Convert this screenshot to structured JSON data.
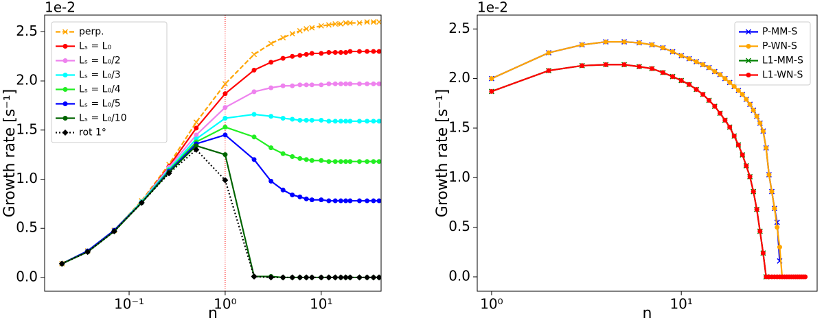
{
  "chart_data": [
    {
      "type": "line",
      "xscale": "log",
      "xlabel": "n",
      "ylabel": "Growth rate [s⁻¹]",
      "offset_label": "1e-2",
      "xlim": [
        0.0132,
        42
      ],
      "ylim": [
        -0.14,
        2.67
      ],
      "xticks": [
        {
          "value": 0.1,
          "label": "10⁻¹"
        },
        {
          "value": 1,
          "label": "10⁰"
        },
        {
          "value": 10,
          "label": "10¹"
        }
      ],
      "yticks": [
        {
          "value": 0,
          "label": "0.0"
        },
        0.5,
        {
          "value": 1,
          "label": "1.0"
        },
        1.5,
        {
          "value": 2,
          "label": "2.0"
        },
        2.5
      ],
      "legend": "upper left",
      "vline": {
        "x": 1,
        "color": "#ff0000"
      },
      "x": [
        0.02,
        0.037,
        0.07,
        0.135,
        0.26,
        0.5,
        1,
        2,
        3,
        4,
        5,
        6,
        7,
        8,
        10,
        12,
        14,
        16,
        18,
        20,
        25,
        30,
        35,
        40
      ],
      "series": [
        {
          "name": "perp.",
          "color": "#ffa500",
          "marker": "x",
          "linestyle": "dashed",
          "values": [
            0.14,
            0.27,
            0.48,
            0.78,
            1.15,
            1.58,
            1.97,
            2.27,
            2.38,
            2.44,
            2.48,
            2.51,
            2.53,
            2.54,
            2.56,
            2.57,
            2.58,
            2.58,
            2.59,
            2.59,
            2.59,
            2.6,
            2.6,
            2.6
          ]
        },
        {
          "name": "Lₛ = L₀",
          "color": "#ff0000",
          "marker": "o",
          "linestyle": "solid",
          "values": [
            0.14,
            0.27,
            0.48,
            0.77,
            1.13,
            1.52,
            1.87,
            2.11,
            2.19,
            2.23,
            2.25,
            2.26,
            2.27,
            2.28,
            2.28,
            2.29,
            2.29,
            2.29,
            2.29,
            2.3,
            2.3,
            2.3,
            2.3,
            2.3
          ]
        },
        {
          "name": "Lₛ = L₀/2",
          "color": "#ee82ee",
          "marker": "o",
          "linestyle": "solid",
          "values": [
            0.14,
            0.27,
            0.48,
            0.77,
            1.12,
            1.45,
            1.73,
            1.89,
            1.93,
            1.95,
            1.95,
            1.96,
            1.96,
            1.96,
            1.96,
            1.97,
            1.97,
            1.97,
            1.97,
            1.97,
            1.97,
            1.97,
            1.97,
            1.97
          ]
        },
        {
          "name": "Lₛ = L₀/3",
          "color": "#00ffff",
          "marker": "o",
          "linestyle": "solid",
          "values": [
            0.14,
            0.27,
            0.48,
            0.77,
            1.1,
            1.41,
            1.62,
            1.66,
            1.64,
            1.62,
            1.61,
            1.6,
            1.6,
            1.6,
            1.6,
            1.59,
            1.59,
            1.59,
            1.59,
            1.59,
            1.59,
            1.59,
            1.59,
            1.59
          ]
        },
        {
          "name": "Lₛ = L₀/4",
          "color": "#22ee22",
          "marker": "o",
          "linestyle": "solid",
          "values": [
            0.14,
            0.27,
            0.48,
            0.76,
            1.09,
            1.38,
            1.53,
            1.43,
            1.32,
            1.26,
            1.23,
            1.21,
            1.2,
            1.19,
            1.19,
            1.18,
            1.18,
            1.18,
            1.18,
            1.18,
            1.18,
            1.18,
            1.18,
            1.18
          ]
        },
        {
          "name": "Lₛ = L₀/5",
          "color": "#0000ff",
          "marker": "o",
          "linestyle": "solid",
          "values": [
            0.14,
            0.27,
            0.48,
            0.76,
            1.08,
            1.36,
            1.45,
            1.2,
            0.98,
            0.89,
            0.84,
            0.82,
            0.8,
            0.79,
            0.79,
            0.78,
            0.78,
            0.78,
            0.78,
            0.78,
            0.78,
            0.78,
            0.78,
            0.78
          ]
        },
        {
          "name": "Lₛ = L₀/10",
          "color": "#006400",
          "marker": "o",
          "linestyle": "solid",
          "values": [
            0.14,
            0.26,
            0.47,
            0.76,
            1.07,
            1.34,
            1.25,
            0.01,
            0.01,
            0,
            0,
            0,
            0,
            0,
            0,
            0,
            0,
            0,
            0,
            0,
            0,
            0,
            0,
            0
          ]
        },
        {
          "name": "rot 1°",
          "color": "#000000",
          "marker": "D",
          "linestyle": "dotted",
          "values": [
            0.14,
            0.26,
            0.47,
            0.76,
            1.06,
            1.3,
            0.99,
            0.01,
            0,
            0,
            0,
            0,
            0,
            0,
            0,
            0,
            0,
            0,
            0,
            0,
            0,
            0,
            0,
            0
          ]
        }
      ]
    },
    {
      "type": "line",
      "xscale": "log",
      "xlabel": "n",
      "ylabel": "Growth rate [s⁻¹]",
      "offset_label": "1e-2",
      "xlim": [
        0.84,
        52
      ],
      "ylim": [
        -0.145,
        2.64
      ],
      "xticks": [
        {
          "value": 1,
          "label": "10⁰"
        },
        {
          "value": 10,
          "label": "10¹"
        }
      ],
      "yticks": [
        {
          "value": 0,
          "label": "0.0"
        },
        0.5,
        {
          "value": 1,
          "label": "1.0"
        },
        1.5,
        {
          "value": 2,
          "label": "2.0"
        },
        2.5
      ],
      "legend": "upper right",
      "series": [
        {
          "name": "P-MM-S",
          "color": "#0000ff",
          "marker": "x",
          "linestyle": "solid",
          "x": [
            1,
            2,
            3,
            4,
            5,
            6,
            7,
            8,
            9,
            10,
            11,
            12,
            13,
            14,
            15,
            16,
            17,
            18,
            19,
            20,
            21,
            22,
            23,
            24,
            25,
            26,
            27,
            28,
            29,
            30,
            31,
            32,
            33
          ],
          "values": [
            2.0,
            2.26,
            2.34,
            2.37,
            2.37,
            2.36,
            2.34,
            2.31,
            2.27,
            2.23,
            2.2,
            2.17,
            2.14,
            2.11,
            2.07,
            2.04,
            2.0,
            1.96,
            1.92,
            1.88,
            1.84,
            1.79,
            1.74,
            1.68,
            1.62,
            1.55,
            1.47,
            1.3,
            1.03,
            0.86,
            0.69,
            0.55,
            0.16
          ]
        },
        {
          "name": "P-WN-S",
          "color": "#ffa500",
          "marker": "o",
          "linestyle": "solid",
          "x": [
            1,
            2,
            3,
            4,
            5,
            6,
            7,
            8,
            9,
            10,
            11,
            12,
            13,
            14,
            15,
            16,
            17,
            18,
            19,
            20,
            21,
            22,
            23,
            24,
            25,
            26,
            27,
            28,
            29,
            30,
            31,
            32,
            33,
            34
          ],
          "values": [
            2.0,
            2.26,
            2.34,
            2.37,
            2.37,
            2.36,
            2.34,
            2.31,
            2.27,
            2.23,
            2.2,
            2.17,
            2.14,
            2.11,
            2.07,
            2.04,
            2.0,
            1.96,
            1.92,
            1.88,
            1.84,
            1.79,
            1.74,
            1.68,
            1.62,
            1.55,
            1.47,
            1.3,
            1.03,
            0.86,
            0.69,
            0.5,
            0.3,
            0
          ]
        },
        {
          "name": "L1-MM-S",
          "color": "#008000",
          "marker": "x",
          "linestyle": "solid",
          "x": [
            1,
            2,
            3,
            4,
            5,
            6,
            7,
            8,
            9,
            10,
            11,
            12,
            13,
            14,
            15,
            16,
            17,
            18,
            19,
            20,
            21,
            22,
            23,
            24,
            25,
            26,
            27,
            28
          ],
          "values": [
            1.87,
            2.08,
            2.13,
            2.14,
            2.14,
            2.12,
            2.1,
            2.06,
            2.02,
            1.98,
            1.94,
            1.89,
            1.84,
            1.78,
            1.72,
            1.65,
            1.58,
            1.51,
            1.42,
            1.33,
            1.23,
            1.12,
            1.01,
            0.86,
            0.68,
            0.46,
            0.24,
            0
          ]
        },
        {
          "name": "L1-WN-S",
          "color": "#ff0000",
          "marker": "o",
          "linestyle": "solid",
          "x": [
            1,
            2,
            3,
            4,
            5,
            6,
            7,
            8,
            9,
            10,
            11,
            12,
            13,
            14,
            15,
            16,
            17,
            18,
            19,
            20,
            21,
            22,
            23,
            24,
            25,
            26,
            27,
            28,
            29,
            30,
            31,
            32,
            33,
            34,
            35,
            36,
            37,
            38,
            39,
            40,
            41,
            42,
            43,
            44,
            45
          ],
          "values": [
            1.87,
            2.08,
            2.13,
            2.14,
            2.14,
            2.12,
            2.1,
            2.06,
            2.02,
            1.98,
            1.94,
            1.89,
            1.84,
            1.78,
            1.72,
            1.65,
            1.58,
            1.51,
            1.42,
            1.33,
            1.23,
            1.12,
            1.01,
            0.86,
            0.68,
            0.46,
            0.24,
            0,
            0,
            0,
            0,
            0,
            0,
            0,
            0,
            0,
            0,
            0,
            0,
            0,
            0,
            0,
            0,
            0,
            0
          ]
        }
      ]
    }
  ]
}
